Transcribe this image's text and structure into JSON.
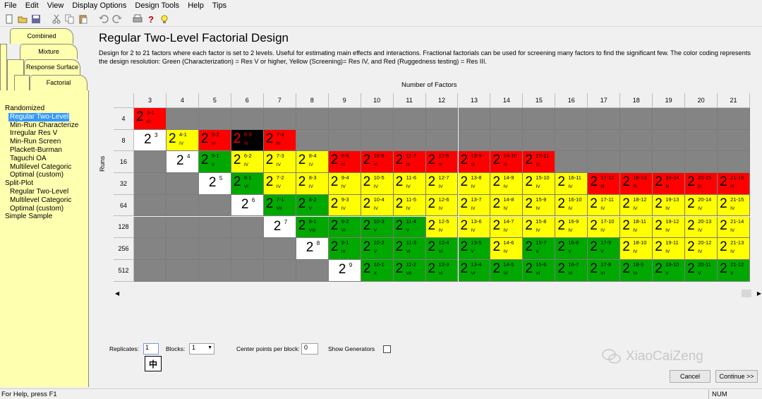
{
  "menu": [
    "File",
    "Edit",
    "View",
    "Display Options",
    "Design Tools",
    "Help",
    "Tips"
  ],
  "toolbar": [
    "new-icon",
    "open-icon",
    "save-icon",
    "cut-icon",
    "copy-icon",
    "paste-icon",
    "undo-icon",
    "redo-icon",
    "print-icon",
    "help-icon",
    "tips-bulb-icon"
  ],
  "tabs": {
    "combined": "Combined",
    "mixture": "Mixture",
    "response_surface": "Response Surface",
    "factorial": "Factorial"
  },
  "design_list": [
    {
      "label": "Randomized",
      "level": "group"
    },
    {
      "label": "Regular Two-Level",
      "level": "sub",
      "selected": true
    },
    {
      "label": "Min-Run Characterize",
      "level": "sub"
    },
    {
      "label": "Irregular Res V",
      "level": "sub"
    },
    {
      "label": "Min-Run Screen",
      "level": "sub"
    },
    {
      "label": "Plackett-Burman",
      "level": "sub"
    },
    {
      "label": "Taguchi OA",
      "level": "sub"
    },
    {
      "label": "Multilevel Categoric",
      "level": "sub"
    },
    {
      "label": "Optimal (custom)",
      "level": "sub"
    },
    {
      "label": "Split-Plot",
      "level": "group"
    },
    {
      "label": "Regular Two-Level",
      "level": "sub"
    },
    {
      "label": "Multilevel Categoric",
      "level": "sub"
    },
    {
      "label": "Optimal (custom)",
      "level": "sub"
    },
    {
      "label": "Simple Sample",
      "level": "group"
    }
  ],
  "main": {
    "title": "Regular Two-Level Factorial Design",
    "description": "Design for 2 to 21 factors where each factor is set to 2 levels. Useful for estimating main effects and interactions. Fractional factorials can be used for screening many factors to find the significant few. The color coding represents the design resolution: Green (Characterization) = Res V or higher, Yellow (Screening)= Res IV, and Red (Ruggedness testing) = Res III.",
    "factors_label": "Number of Factors",
    "runs_label": "Runs"
  },
  "grid": {
    "factors": [
      "3",
      "4",
      "5",
      "6",
      "7",
      "8",
      "9",
      "10",
      "11",
      "12",
      "13",
      "14",
      "15",
      "16",
      "17",
      "18",
      "19",
      "20",
      "21"
    ],
    "runs": [
      "4",
      "8",
      "16",
      "32",
      "64",
      "128",
      "256",
      "512"
    ],
    "colors": {
      "red": "#ff0000",
      "yellow": "#ffff00",
      "green": "#00a800",
      "gray": "#848484",
      "black": "#000000",
      "white": "#ffffff"
    },
    "cells": [
      [
        "R:3-1:III",
        "G",
        "G",
        "G",
        "G",
        "G",
        "G",
        "G",
        "G",
        "G",
        "G",
        "G",
        "G",
        "G",
        "G",
        "G",
        "G",
        "G",
        "G"
      ],
      [
        "W:3",
        "Y:4-1:IV",
        "R:5-2:III",
        "K:6-3:III",
        "R:7-4:III",
        "G",
        "G",
        "G",
        "G",
        "G",
        "G",
        "G",
        "G",
        "G",
        "G",
        "G",
        "G",
        "G",
        "G"
      ],
      [
        "G",
        "W:4",
        "N:5-1:V",
        "Y:6-2:IV",
        "Y:7-3:IV",
        "Y:8-4:IV",
        "R:9-5:III",
        "R:10-6:III",
        "R:11-7:III",
        "R:12-8:III",
        "R:13-9:III",
        "R:14-10:III",
        "R:15-11:III",
        "G",
        "G",
        "G",
        "G",
        "G",
        "G"
      ],
      [
        "G",
        "G",
        "W:5",
        "N:6-1:VI",
        "Y:7-2:IV",
        "Y:8-3:IV",
        "Y:9-4:IV",
        "Y:10-5:IV",
        "Y:11-6:IV",
        "Y:12-7:IV",
        "Y:13-8:IV",
        "Y:14-9:IV",
        "Y:15-10:IV",
        "Y:16-11:IV",
        "R:17-12:III",
        "R:18-13:III",
        "R:19-14:III",
        "R:20-15:III",
        "R:21-16:III"
      ],
      [
        "G",
        "G",
        "G",
        "W:6",
        "N:7-1:VII",
        "N:8-2:V",
        "Y:9-3:IV",
        "Y:10-4:IV",
        "Y:11-5:IV",
        "Y:12-6:IV",
        "Y:13-7:IV",
        "Y:14-8:IV",
        "Y:15-9:IV",
        "Y:16-10:IV",
        "Y:17-11:IV",
        "Y:18-12:IV",
        "Y:19-13:IV",
        "Y:20-14:IV",
        "Y:21-15:IV"
      ],
      [
        "G",
        "G",
        "G",
        "G",
        "W:7",
        "N:8-1:VIII",
        "N:9-2:VI",
        "N:10-3:V",
        "N:11-4:V",
        "Y:12-5:IV",
        "Y:13-6:IV",
        "Y:14-7:IV",
        "Y:15-8:IV",
        "Y:16-9:IV",
        "Y:17-10:IV",
        "Y:18-11:IV",
        "Y:19-12:IV",
        "Y:20-13:IV",
        "Y:21-14:IV"
      ],
      [
        "G",
        "G",
        "G",
        "G",
        "G",
        "W:8",
        "N:9-1:IX",
        "N:10-2:V",
        "N:11-3:VI",
        "N:12-4:VI",
        "N:13-5:V",
        "Y:14-6:IV",
        "N:15-7:V",
        "N:16-8:V",
        "N:17-9:V",
        "Y:18-10:IV",
        "Y:19-11:IV",
        "Y:20-12:IV",
        "Y:21-13:IV"
      ],
      [
        "G",
        "G",
        "G",
        "G",
        "G",
        "G",
        "W:9",
        "N:10-1:X",
        "N:11-2:VII",
        "N:12-3:VI",
        "N:13-4:VI",
        "N:14-5:VI",
        "N:15-6:VI",
        "N:16-7:VI",
        "N:17-8:VI",
        "N:18-9:VI",
        "N:19-10:V",
        "N:20-11:V",
        "N:21-12:V"
      ]
    ]
  },
  "options": {
    "replicates_label": "Replicates:",
    "replicates_value": "1",
    "blocks_label": "Blocks:",
    "blocks_value": "1",
    "center_points_label": "Center points per block:",
    "center_points_value": "0",
    "show_generators_label": "Show Generators",
    "ime_indicator": "中"
  },
  "buttons": {
    "cancel": "Cancel",
    "continue": "Continue >>"
  },
  "watermark": "XiaoCaiZeng",
  "status": {
    "help": "For Help, press F1",
    "num": "NUM"
  }
}
